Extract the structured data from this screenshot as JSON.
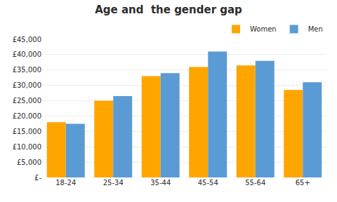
{
  "chart_data": {
    "type": "bar",
    "title": "Age and  the gender gap",
    "categories": [
      "18-24",
      "25-34",
      "35-44",
      "45-54",
      "55-64",
      "65+"
    ],
    "series": [
      {
        "name": "Women",
        "color": "#FFA500",
        "values": [
          18000,
          25000,
          33000,
          36000,
          36500,
          28500
        ]
      },
      {
        "name": "Men",
        "color": "#5B9BD5",
        "values": [
          17500,
          26500,
          34000,
          41000,
          38000,
          31000
        ]
      }
    ],
    "ylim": [
      0,
      45000
    ],
    "yticks": [
      {
        "value": 0,
        "label": "£-"
      },
      {
        "value": 5000,
        "label": "£5,000"
      },
      {
        "value": 10000,
        "label": "£10,000"
      },
      {
        "value": 15000,
        "label": "£15,000"
      },
      {
        "value": 20000,
        "label": "£20,000"
      },
      {
        "value": 25000,
        "label": "£25,000"
      },
      {
        "value": 30000,
        "label": "£30,000"
      },
      {
        "value": 35000,
        "label": "£35,000"
      },
      {
        "value": 40000,
        "label": "£40,000"
      },
      {
        "value": 45000,
        "label": "£45,000"
      }
    ],
    "grid": true,
    "legend": "upper right"
  }
}
